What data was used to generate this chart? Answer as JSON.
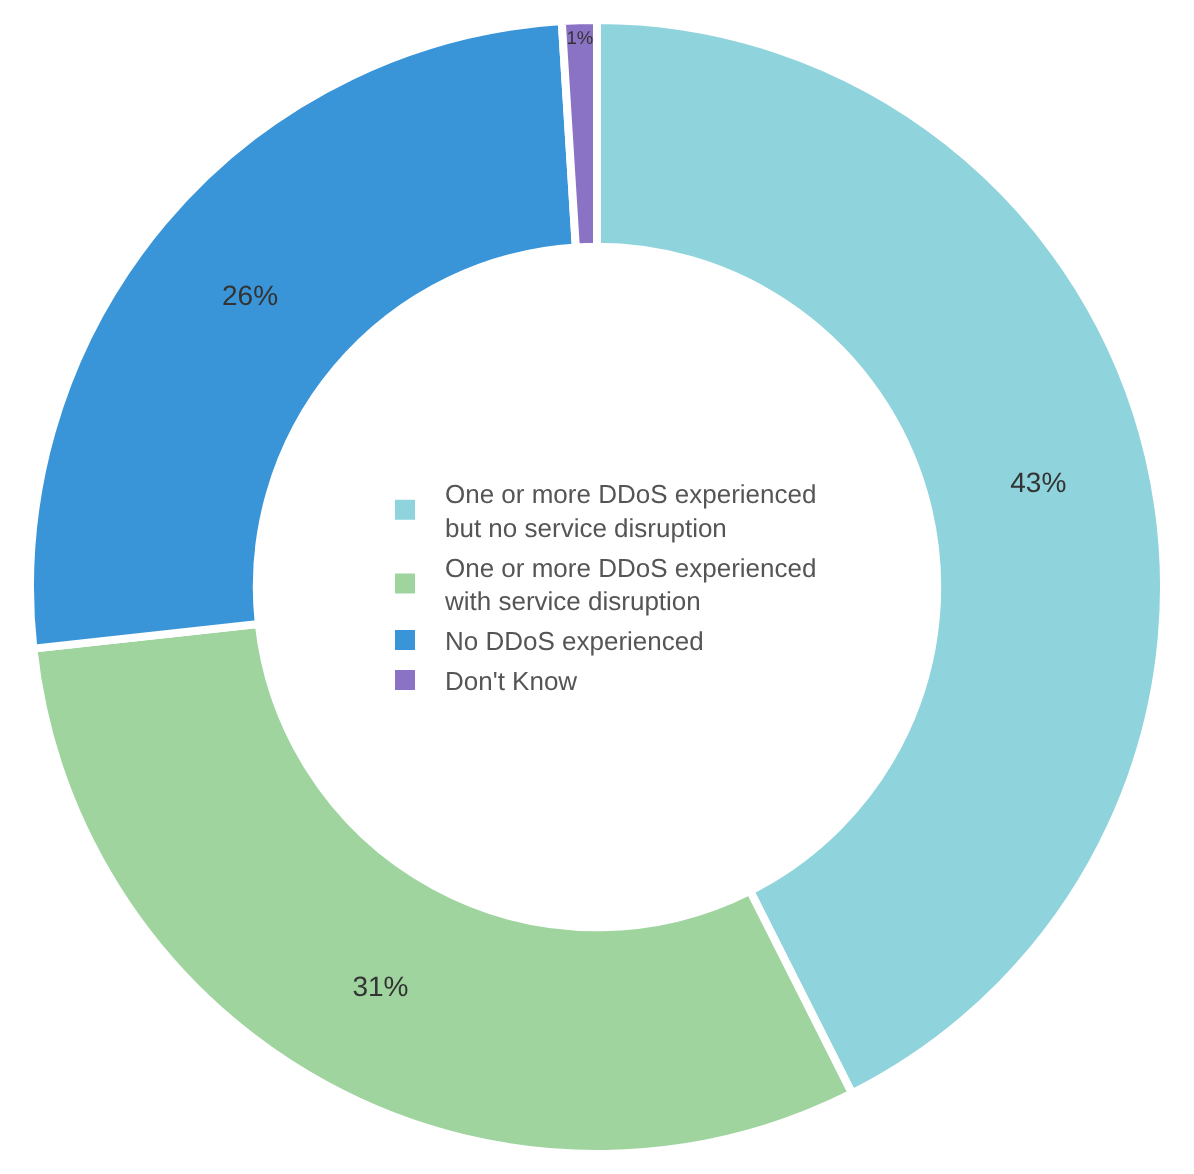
{
  "chart_data": {
    "type": "donut",
    "categories": [
      "One or more DDoS experienced but no service disruption",
      "One or more DDoS experienced with service disruption",
      "No DDoS experienced",
      "Don't Know"
    ],
    "values": [
      43,
      31,
      26,
      1
    ],
    "value_labels": [
      "43%",
      "31%",
      "26%",
      "1%"
    ],
    "colors": [
      "#8fd3dc",
      "#9fd49f",
      "#3a95d8",
      "#8a72c4"
    ],
    "legend": "center"
  }
}
